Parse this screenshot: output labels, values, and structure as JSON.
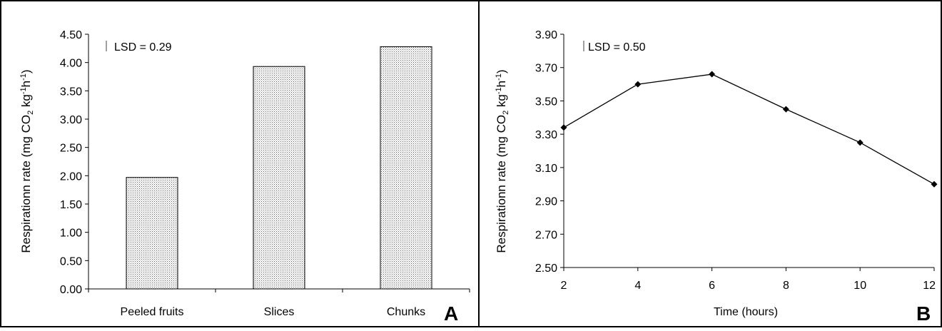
{
  "chart_data": [
    {
      "type": "bar",
      "panel_label": "A",
      "ylabel": "Respirationn rate (mg CO2 kg-1 h-1)",
      "xlabel": "",
      "categories": [
        "Peeled fruits",
        "Slices",
        "Chunks"
      ],
      "values": [
        1.97,
        3.93,
        4.28
      ],
      "ylim": [
        0,
        4.5
      ],
      "yticks": [
        "0.00",
        "0.50",
        "1.00",
        "1.50",
        "2.00",
        "2.50",
        "3.00",
        "3.50",
        "4.00",
        "4.50"
      ],
      "annotation": "LSD  =  0.29",
      "bar_fill": "dotted-gray",
      "grid": false
    },
    {
      "type": "line",
      "panel_label": "B",
      "ylabel": "Respirationn rate (mg CO2 kg-1 h-1)",
      "xlabel": "Time (hours)",
      "x": [
        2,
        4,
        6,
        8,
        10,
        12
      ],
      "y": [
        3.34,
        3.6,
        3.66,
        3.45,
        3.25,
        3.0
      ],
      "xlim": [
        2,
        12
      ],
      "ylim": [
        2.5,
        3.9
      ],
      "xticks": [
        "2",
        "4",
        "6",
        "8",
        "10",
        "12"
      ],
      "yticks": [
        "2.50",
        "2.70",
        "2.90",
        "3.10",
        "3.30",
        "3.50",
        "3.70",
        "3.90"
      ],
      "annotation": "LSD = 0.50",
      "marker": "diamond",
      "grid": false
    }
  ]
}
